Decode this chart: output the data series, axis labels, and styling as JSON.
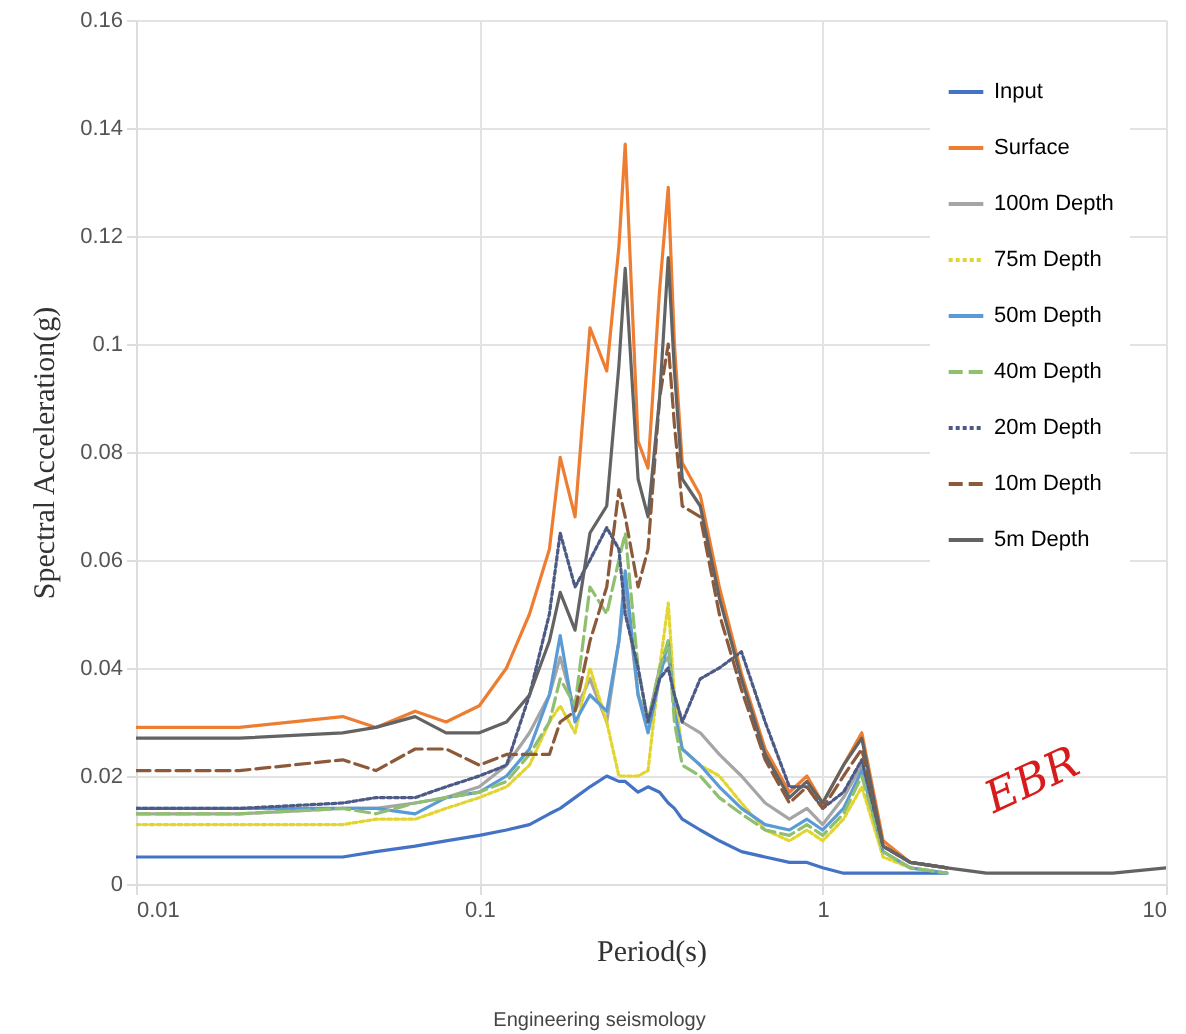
{
  "chart_data": {
    "type": "line",
    "xlabel": "Period(s)",
    "ylabel": "Spectral Acceleration(g)",
    "log": "x",
    "grid": true,
    "legend": "top right",
    "xlim": [
      0.01,
      10
    ],
    "xticks": [
      0.01,
      0.1,
      1,
      10
    ],
    "ylim": [
      0,
      0.16
    ],
    "yticks": [
      0,
      0.02,
      0.04,
      0.06,
      0.08,
      0.1,
      0.12,
      0.14,
      0.16
    ],
    "x": [
      0.01,
      0.02,
      0.04,
      0.05,
      0.065,
      0.08,
      0.1,
      0.12,
      0.14,
      0.16,
      0.172,
      0.19,
      0.21,
      0.235,
      0.255,
      0.266,
      0.29,
      0.31,
      0.335,
      0.355,
      0.37,
      0.39,
      0.44,
      0.5,
      0.58,
      0.68,
      0.8,
      0.9,
      1.0,
      1.15,
      1.3,
      1.5,
      1.8,
      2.3,
      3,
      5,
      7,
      10
    ],
    "series": [
      {
        "name": "Input",
        "color": "#4472c4",
        "line_style": "solid",
        "values": [
          0.005,
          0.005,
          0.005,
          0.006,
          0.007,
          0.008,
          0.009,
          0.01,
          0.011,
          0.013,
          0.014,
          0.016,
          0.018,
          0.02,
          0.019,
          0.019,
          0.017,
          0.018,
          0.017,
          0.015,
          0.014,
          0.012,
          0.01,
          0.008,
          0.006,
          0.005,
          0.004,
          0.004,
          0.003,
          0.002,
          0.002,
          0.002,
          0.002,
          0.002,
          null,
          null,
          null,
          null
        ]
      },
      {
        "name": "Surface",
        "color": "#ed7d31",
        "line_style": "solid",
        "values": [
          0.029,
          0.029,
          0.031,
          0.029,
          0.032,
          0.03,
          0.033,
          0.04,
          0.05,
          0.062,
          0.079,
          0.068,
          0.103,
          0.095,
          0.118,
          0.137,
          0.082,
          0.077,
          0.11,
          0.129,
          0.1,
          0.078,
          0.072,
          0.055,
          0.039,
          0.025,
          0.017,
          0.02,
          0.015,
          0.022,
          0.028,
          0.008,
          0.004,
          0.003,
          null,
          null,
          null,
          null
        ]
      },
      {
        "name": "100m Depth",
        "color": "#a5a5a5",
        "line_style": "solid",
        "values": [
          0.013,
          0.013,
          0.014,
          0.014,
          0.015,
          0.016,
          0.018,
          0.022,
          0.028,
          0.035,
          0.042,
          0.032,
          0.038,
          0.03,
          0.045,
          0.055,
          0.035,
          0.03,
          0.04,
          0.042,
          0.035,
          0.03,
          0.028,
          0.024,
          0.02,
          0.015,
          0.012,
          0.014,
          0.011,
          0.016,
          0.022,
          0.007,
          0.004,
          0.003,
          null,
          null,
          null,
          null
        ]
      },
      {
        "name": "75m Depth",
        "color": "#e2d530",
        "line_style": "dotted",
        "values": [
          0.011,
          0.011,
          0.011,
          0.012,
          0.012,
          0.014,
          0.016,
          0.018,
          0.022,
          0.03,
          0.033,
          0.028,
          0.04,
          0.03,
          0.02,
          0.02,
          0.02,
          0.021,
          0.04,
          0.052,
          0.035,
          0.025,
          0.022,
          0.02,
          0.015,
          0.01,
          0.008,
          0.01,
          0.008,
          0.012,
          0.018,
          0.005,
          0.003,
          null,
          null,
          null,
          null,
          null
        ]
      },
      {
        "name": "50m Depth",
        "color": "#5b9bd5",
        "line_style": "solid",
        "values": [
          0.014,
          0.014,
          0.014,
          0.014,
          0.013,
          0.016,
          0.017,
          0.02,
          0.025,
          0.035,
          0.046,
          0.03,
          0.035,
          0.032,
          0.045,
          0.058,
          0.035,
          0.028,
          0.038,
          0.045,
          0.032,
          0.025,
          0.022,
          0.018,
          0.014,
          0.011,
          0.01,
          0.012,
          0.01,
          0.014,
          0.021,
          0.006,
          0.003,
          0.002,
          null,
          null,
          null,
          null
        ]
      },
      {
        "name": "40m Depth",
        "color": "#8fbf6f",
        "line_style": "dashed",
        "values": [
          0.013,
          0.013,
          0.014,
          0.013,
          0.015,
          0.016,
          0.017,
          0.019,
          0.024,
          0.03,
          0.038,
          0.033,
          0.055,
          0.05,
          0.06,
          0.065,
          0.04,
          0.03,
          0.04,
          0.045,
          0.03,
          0.022,
          0.02,
          0.016,
          0.013,
          0.01,
          0.009,
          0.011,
          0.009,
          0.013,
          0.02,
          0.006,
          0.003,
          0.002,
          null,
          null,
          null,
          null
        ]
      },
      {
        "name": "20m Depth",
        "color": "#4d5a85",
        "line_style": "dotted",
        "values": [
          0.014,
          0.014,
          0.015,
          0.016,
          0.016,
          0.018,
          0.02,
          0.022,
          0.035,
          0.05,
          0.065,
          0.055,
          0.06,
          0.066,
          0.062,
          0.05,
          0.04,
          0.03,
          0.038,
          0.04,
          0.035,
          0.03,
          0.038,
          0.04,
          0.043,
          0.03,
          0.018,
          0.018,
          0.014,
          0.017,
          0.023,
          0.007,
          0.004,
          0.003,
          null,
          null,
          null,
          null
        ]
      },
      {
        "name": "10m Depth",
        "color": "#8c5a3a",
        "line_style": "dashed",
        "values": [
          0.021,
          0.021,
          0.023,
          0.021,
          0.025,
          0.025,
          0.022,
          0.024,
          0.024,
          0.024,
          0.03,
          0.032,
          0.045,
          0.055,
          0.073,
          0.068,
          0.055,
          0.062,
          0.09,
          0.1,
          0.085,
          0.07,
          0.068,
          0.05,
          0.036,
          0.023,
          0.015,
          0.018,
          0.014,
          0.02,
          0.025,
          0.007,
          0.004,
          0.003,
          null,
          null,
          null,
          null
        ]
      },
      {
        "name": "5m Depth",
        "color": "#636363",
        "line_style": "solid",
        "values": [
          0.027,
          0.027,
          0.028,
          0.029,
          0.031,
          0.028,
          0.028,
          0.03,
          0.035,
          0.045,
          0.054,
          0.047,
          0.065,
          0.07,
          0.096,
          0.114,
          0.075,
          0.068,
          0.09,
          0.116,
          0.095,
          0.075,
          0.07,
          0.053,
          0.038,
          0.024,
          0.016,
          0.019,
          0.015,
          0.022,
          0.027,
          0.007,
          0.004,
          0.003,
          0.002,
          0.002,
          0.002,
          0.003
        ]
      }
    ],
    "annotations": [
      "EBR",
      "Engineering seismology"
    ]
  }
}
